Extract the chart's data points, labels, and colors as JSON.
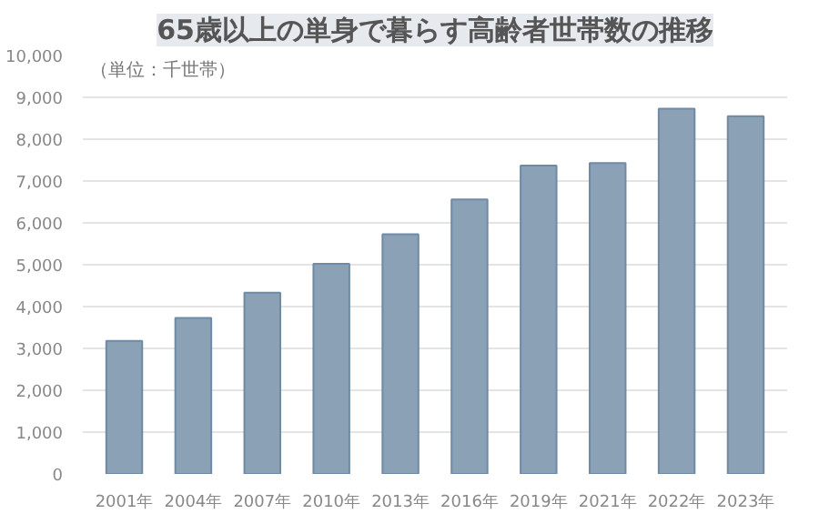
{
  "chart_data": {
    "type": "bar",
    "title": "65歳以上の単身で暮らす高齢者世帯数の推移",
    "annotations": [
      "（単位：千世帯）"
    ],
    "categories": [
      "2001年",
      "2004年",
      "2007年",
      "2010年",
      "2013年",
      "2016年",
      "2019年",
      "2021年",
      "2022年",
      "2023年"
    ],
    "values": [
      3180,
      3730,
      4330,
      5020,
      5730,
      6560,
      7370,
      7430,
      8730,
      8550
    ],
    "color": "#8ba1b6",
    "ylim": [
      0,
      10000
    ],
    "yticks": [
      {
        "value": 0,
        "label": "0"
      },
      {
        "value": 1000,
        "label": "1,000"
      },
      {
        "value": 2000,
        "label": "2,000"
      },
      {
        "value": 3000,
        "label": "3,000"
      },
      {
        "value": 4000,
        "label": "4,000"
      },
      {
        "value": 5000,
        "label": "5,000"
      },
      {
        "value": 6000,
        "label": "6,000"
      },
      {
        "value": 7000,
        "label": "7,000"
      },
      {
        "value": 8000,
        "label": "8,000"
      },
      {
        "value": 9000,
        "label": "9,000"
      },
      {
        "value": 10000,
        "label": "10,000"
      }
    ],
    "grid": "y"
  }
}
